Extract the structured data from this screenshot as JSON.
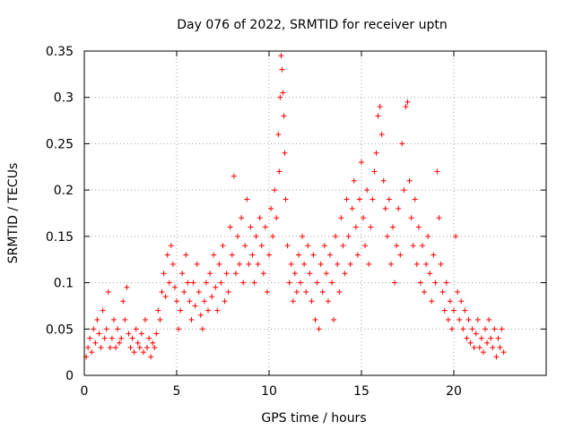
{
  "chart_data": {
    "type": "scatter",
    "title": "Day 076 of 2022, SRMTID for receiver uptn",
    "xlabel": "GPS time / hours",
    "ylabel": "SRMTID / TECUs",
    "xlim": [
      0,
      25
    ],
    "ylim": [
      0,
      0.35
    ],
    "xticks": [
      0,
      5,
      10,
      15,
      20
    ],
    "xtick_labels": [
      "0",
      "5",
      "10",
      "15",
      "20"
    ],
    "yticks": [
      0,
      0.05,
      0.1,
      0.15,
      0.2,
      0.25,
      0.3,
      0.35
    ],
    "ytick_labels": [
      "0",
      "0.05",
      "0.1",
      "0.15",
      "0.2",
      "0.25",
      "0.3",
      "0.35"
    ],
    "grid": true,
    "marker": "+",
    "color": "#ff0000",
    "series": [
      {
        "name": "SRMTID",
        "points": [
          [
            0.1,
            0.02
          ],
          [
            0.2,
            0.03
          ],
          [
            0.3,
            0.04
          ],
          [
            0.4,
            0.025
          ],
          [
            0.5,
            0.05
          ],
          [
            0.6,
            0.035
          ],
          [
            0.7,
            0.06
          ],
          [
            0.8,
            0.045
          ],
          [
            0.9,
            0.03
          ],
          [
            1.0,
            0.07
          ],
          [
            1.1,
            0.04
          ],
          [
            1.2,
            0.05
          ],
          [
            1.3,
            0.09
          ],
          [
            1.4,
            0.03
          ],
          [
            1.5,
            0.04
          ],
          [
            1.6,
            0.06
          ],
          [
            1.7,
            0.03
          ],
          [
            1.8,
            0.05
          ],
          [
            1.9,
            0.035
          ],
          [
            2.0,
            0.04
          ],
          [
            2.1,
            0.08
          ],
          [
            2.2,
            0.06
          ],
          [
            2.3,
            0.095
          ],
          [
            2.4,
            0.045
          ],
          [
            2.5,
            0.03
          ],
          [
            2.6,
            0.04
          ],
          [
            2.7,
            0.025
          ],
          [
            2.8,
            0.05
          ],
          [
            2.9,
            0.035
          ],
          [
            3.0,
            0.03
          ],
          [
            3.1,
            0.045
          ],
          [
            3.2,
            0.025
          ],
          [
            3.3,
            0.06
          ],
          [
            3.4,
            0.03
          ],
          [
            3.5,
            0.04
          ],
          [
            3.6,
            0.02
          ],
          [
            3.7,
            0.035
          ],
          [
            3.8,
            0.03
          ],
          [
            3.9,
            0.045
          ],
          [
            4.0,
            0.07
          ],
          [
            4.1,
            0.06
          ],
          [
            4.2,
            0.09
          ],
          [
            4.3,
            0.11
          ],
          [
            4.4,
            0.085
          ],
          [
            4.5,
            0.13
          ],
          [
            4.6,
            0.1
          ],
          [
            4.7,
            0.14
          ],
          [
            4.8,
            0.12
          ],
          [
            4.9,
            0.095
          ],
          [
            5.0,
            0.08
          ],
          [
            5.1,
            0.05
          ],
          [
            5.2,
            0.07
          ],
          [
            5.3,
            0.11
          ],
          [
            5.4,
            0.09
          ],
          [
            5.5,
            0.13
          ],
          [
            5.6,
            0.1
          ],
          [
            5.7,
            0.08
          ],
          [
            5.8,
            0.06
          ],
          [
            5.9,
            0.1
          ],
          [
            6.0,
            0.075
          ],
          [
            6.1,
            0.12
          ],
          [
            6.2,
            0.09
          ],
          [
            6.3,
            0.065
          ],
          [
            6.4,
            0.05
          ],
          [
            6.5,
            0.08
          ],
          [
            6.6,
            0.1
          ],
          [
            6.7,
            0.07
          ],
          [
            6.8,
            0.11
          ],
          [
            6.9,
            0.085
          ],
          [
            7.0,
            0.13
          ],
          [
            7.1,
            0.095
          ],
          [
            7.2,
            0.07
          ],
          [
            7.3,
            0.12
          ],
          [
            7.4,
            0.1
          ],
          [
            7.5,
            0.14
          ],
          [
            7.6,
            0.08
          ],
          [
            7.7,
            0.11
          ],
          [
            7.8,
            0.09
          ],
          [
            7.9,
            0.16
          ],
          [
            8.0,
            0.13
          ],
          [
            8.1,
            0.215
          ],
          [
            8.2,
            0.11
          ],
          [
            8.3,
            0.15
          ],
          [
            8.4,
            0.12
          ],
          [
            8.5,
            0.17
          ],
          [
            8.6,
            0.1
          ],
          [
            8.7,
            0.14
          ],
          [
            8.8,
            0.19
          ],
          [
            8.9,
            0.12
          ],
          [
            9.0,
            0.16
          ],
          [
            9.1,
            0.13
          ],
          [
            9.2,
            0.1
          ],
          [
            9.3,
            0.15
          ],
          [
            9.4,
            0.12
          ],
          [
            9.5,
            0.17
          ],
          [
            9.6,
            0.14
          ],
          [
            9.7,
            0.11
          ],
          [
            9.8,
            0.16
          ],
          [
            9.9,
            0.09
          ],
          [
            10.0,
            0.13
          ],
          [
            10.1,
            0.18
          ],
          [
            10.2,
            0.15
          ],
          [
            10.3,
            0.2
          ],
          [
            10.4,
            0.17
          ],
          [
            10.5,
            0.26
          ],
          [
            10.55,
            0.22
          ],
          [
            10.6,
            0.3
          ],
          [
            10.65,
            0.345
          ],
          [
            10.7,
            0.33
          ],
          [
            10.75,
            0.305
          ],
          [
            10.8,
            0.28
          ],
          [
            10.85,
            0.24
          ],
          [
            10.9,
            0.19
          ],
          [
            11.0,
            0.14
          ],
          [
            11.1,
            0.1
          ],
          [
            11.2,
            0.12
          ],
          [
            11.3,
            0.08
          ],
          [
            11.4,
            0.11
          ],
          [
            11.5,
            0.09
          ],
          [
            11.6,
            0.13
          ],
          [
            11.7,
            0.1
          ],
          [
            11.8,
            0.15
          ],
          [
            11.9,
            0.12
          ],
          [
            12.0,
            0.09
          ],
          [
            12.1,
            0.14
          ],
          [
            12.2,
            0.11
          ],
          [
            12.3,
            0.08
          ],
          [
            12.4,
            0.13
          ],
          [
            12.5,
            0.06
          ],
          [
            12.6,
            0.1
          ],
          [
            12.7,
            0.05
          ],
          [
            12.8,
            0.12
          ],
          [
            12.9,
            0.09
          ],
          [
            13.0,
            0.14
          ],
          [
            13.1,
            0.11
          ],
          [
            13.2,
            0.08
          ],
          [
            13.3,
            0.13
          ],
          [
            13.4,
            0.1
          ],
          [
            13.5,
            0.06
          ],
          [
            13.6,
            0.15
          ],
          [
            13.7,
            0.12
          ],
          [
            13.8,
            0.09
          ],
          [
            13.9,
            0.17
          ],
          [
            14.0,
            0.14
          ],
          [
            14.1,
            0.11
          ],
          [
            14.2,
            0.19
          ],
          [
            14.3,
            0.15
          ],
          [
            14.4,
            0.12
          ],
          [
            14.5,
            0.18
          ],
          [
            14.6,
            0.21
          ],
          [
            14.7,
            0.16
          ],
          [
            14.8,
            0.13
          ],
          [
            14.9,
            0.19
          ],
          [
            15.0,
            0.23
          ],
          [
            15.1,
            0.17
          ],
          [
            15.2,
            0.14
          ],
          [
            15.3,
            0.2
          ],
          [
            15.4,
            0.12
          ],
          [
            15.5,
            0.16
          ],
          [
            15.6,
            0.19
          ],
          [
            15.7,
            0.22
          ],
          [
            15.8,
            0.24
          ],
          [
            15.9,
            0.28
          ],
          [
            16.0,
            0.29
          ],
          [
            16.1,
            0.26
          ],
          [
            16.2,
            0.21
          ],
          [
            16.3,
            0.18
          ],
          [
            16.4,
            0.15
          ],
          [
            16.5,
            0.19
          ],
          [
            16.6,
            0.12
          ],
          [
            16.7,
            0.16
          ],
          [
            16.8,
            0.1
          ],
          [
            16.9,
            0.14
          ],
          [
            17.0,
            0.18
          ],
          [
            17.1,
            0.13
          ],
          [
            17.2,
            0.25
          ],
          [
            17.3,
            0.2
          ],
          [
            17.4,
            0.29
          ],
          [
            17.5,
            0.295
          ],
          [
            17.6,
            0.21
          ],
          [
            17.7,
            0.17
          ],
          [
            17.8,
            0.14
          ],
          [
            17.9,
            0.19
          ],
          [
            18.0,
            0.12
          ],
          [
            18.1,
            0.16
          ],
          [
            18.2,
            0.1
          ],
          [
            18.3,
            0.14
          ],
          [
            18.4,
            0.09
          ],
          [
            18.5,
            0.12
          ],
          [
            18.6,
            0.15
          ],
          [
            18.7,
            0.11
          ],
          [
            18.8,
            0.08
          ],
          [
            18.9,
            0.13
          ],
          [
            19.0,
            0.1
          ],
          [
            19.1,
            0.22
          ],
          [
            19.2,
            0.17
          ],
          [
            19.3,
            0.12
          ],
          [
            19.4,
            0.09
          ],
          [
            19.5,
            0.07
          ],
          [
            19.6,
            0.1
          ],
          [
            19.7,
            0.06
          ],
          [
            19.8,
            0.08
          ],
          [
            19.9,
            0.05
          ],
          [
            20.0,
            0.07
          ],
          [
            20.1,
            0.15
          ],
          [
            20.2,
            0.09
          ],
          [
            20.3,
            0.06
          ],
          [
            20.4,
            0.08
          ],
          [
            20.5,
            0.05
          ],
          [
            20.6,
            0.07
          ],
          [
            20.7,
            0.04
          ],
          [
            20.8,
            0.06
          ],
          [
            20.9,
            0.035
          ],
          [
            21.0,
            0.05
          ],
          [
            21.1,
            0.03
          ],
          [
            21.2,
            0.045
          ],
          [
            21.3,
            0.06
          ],
          [
            21.4,
            0.03
          ],
          [
            21.5,
            0.04
          ],
          [
            21.6,
            0.025
          ],
          [
            21.7,
            0.05
          ],
          [
            21.8,
            0.035
          ],
          [
            21.9,
            0.06
          ],
          [
            22.0,
            0.04
          ],
          [
            22.1,
            0.03
          ],
          [
            22.2,
            0.05
          ],
          [
            22.3,
            0.02
          ],
          [
            22.4,
            0.04
          ],
          [
            22.5,
            0.03
          ],
          [
            22.6,
            0.05
          ],
          [
            22.7,
            0.025
          ]
        ]
      }
    ]
  }
}
